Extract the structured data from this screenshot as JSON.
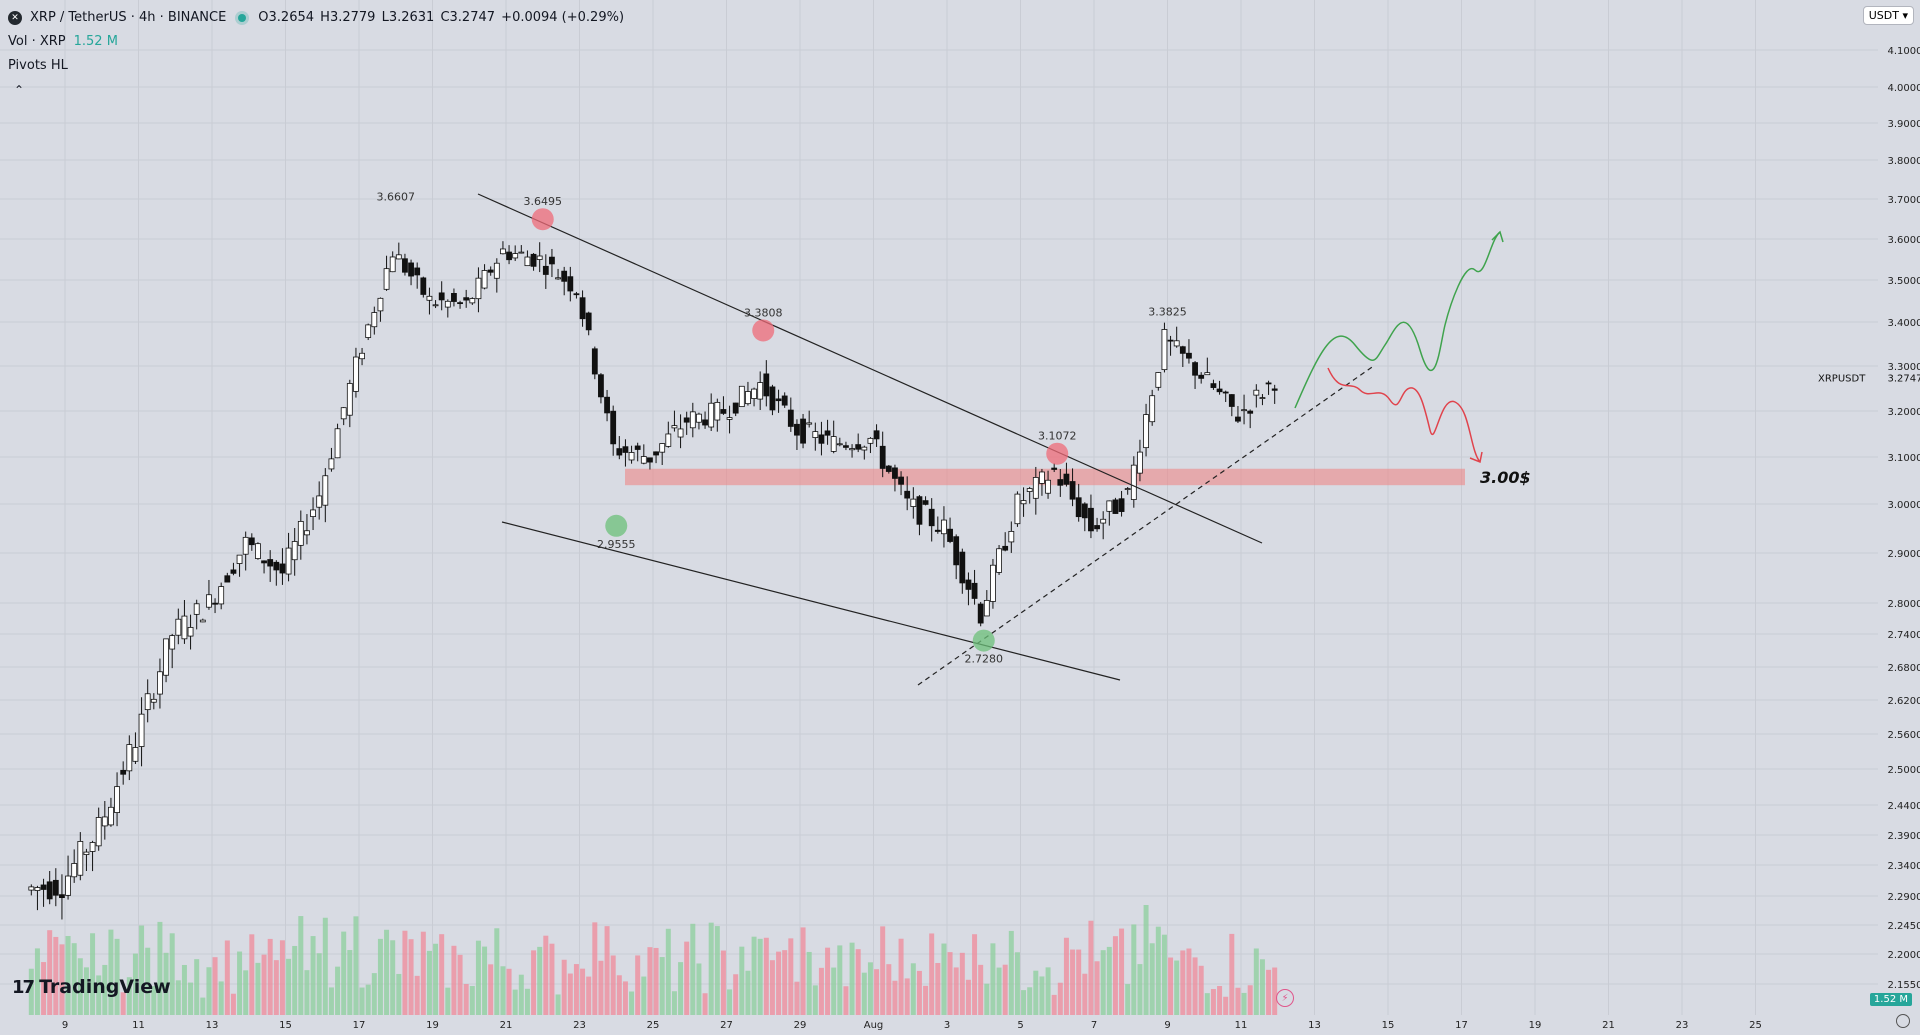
{
  "legend": {
    "symbol": "XRP / TetherUS · 4h · BINANCE",
    "open": "O3.2654",
    "high": "H3.2779",
    "low": "L3.2631",
    "close": "C3.2747",
    "change": "+0.0094 (+0.29%)",
    "volume_label": "Vol · XRP",
    "volume_value": "1.52 M",
    "indicator": "Pivots HL"
  },
  "currency_button": "USDT ▾",
  "brand": "TradingView",
  "volume_tag": "1.52 M",
  "colors": {
    "up": "#26a69a",
    "down": "#ef5350",
    "zone": "#f08080",
    "bg": "#d8dbe3"
  },
  "chart_data": {
    "type": "candlestick",
    "symbol_label": "XRPUSDT",
    "last_price": "3.2747",
    "price_axis_ticks": [
      "4.1000",
      "4.0000",
      "3.9000",
      "3.8000",
      "3.7000",
      "3.6000",
      "3.5000",
      "3.4000",
      "3.3000",
      "3.2000",
      "3.1000",
      "3.0000",
      "2.9000",
      "2.8000",
      "2.7400",
      "2.6800",
      "2.6200",
      "2.5600",
      "2.5000",
      "2.4400",
      "2.3900",
      "2.3400",
      "2.2900",
      "2.2450",
      "2.2000",
      "2.1550"
    ],
    "time_axis_ticks": [
      "9",
      "11",
      "13",
      "15",
      "17",
      "19",
      "21",
      "23",
      "25",
      "27",
      "29",
      "Aug",
      "3",
      "5",
      "7",
      "9",
      "11",
      "13",
      "15",
      "17",
      "19",
      "21",
      "23",
      "25"
    ],
    "price_path": [
      {
        "t": "Jul 8",
        "p": 2.3
      },
      {
        "t": "Jul 9",
        "p": 2.31
      },
      {
        "t": "Jul 10",
        "p": 2.4
      },
      {
        "t": "Jul 11",
        "p": 2.55
      },
      {
        "t": "Jul 12",
        "p": 2.74
      },
      {
        "t": "Jul 13",
        "p": 2.8
      },
      {
        "t": "Jul 14",
        "p": 2.92
      },
      {
        "t": "Jul 15",
        "p": 2.86
      },
      {
        "t": "Jul 16",
        "p": 3.02
      },
      {
        "t": "Jul 17",
        "p": 3.3
      },
      {
        "t": "Jul 18",
        "p": 3.57
      },
      {
        "t": "Jul 19",
        "p": 3.45
      },
      {
        "t": "Jul 20",
        "p": 3.44
      },
      {
        "t": "Jul 21",
        "p": 3.57
      },
      {
        "t": "Jul 22",
        "p": 3.55
      },
      {
        "t": "Jul 23",
        "p": 3.48
      },
      {
        "t": "Jul 24",
        "p": 3.12
      },
      {
        "t": "Jul 25",
        "p": 3.1
      },
      {
        "t": "Jul 26",
        "p": 3.18
      },
      {
        "t": "Jul 27",
        "p": 3.2
      },
      {
        "t": "Jul 28",
        "p": 3.26
      },
      {
        "t": "Jul 29",
        "p": 3.16
      },
      {
        "t": "Jul 30",
        "p": 3.13
      },
      {
        "t": "Jul 31",
        "p": 3.14
      },
      {
        "t": "Aug 1",
        "p": 3.0
      },
      {
        "t": "Aug 2",
        "p": 2.95
      },
      {
        "t": "Aug 3",
        "p": 2.78
      },
      {
        "t": "Aug 4",
        "p": 3.0
      },
      {
        "t": "Aug 5",
        "p": 3.07
      },
      {
        "t": "Aug 6",
        "p": 2.95
      },
      {
        "t": "Aug 7",
        "p": 3.02
      },
      {
        "t": "Aug 8",
        "p": 3.36
      },
      {
        "t": "Aug 9",
        "p": 3.28
      },
      {
        "t": "Aug 10",
        "p": 3.19
      },
      {
        "t": "Aug 11",
        "p": 3.27
      }
    ],
    "pivot_labels": [
      {
        "t": "Jul 18",
        "p": 3.6607,
        "text": "3.6607"
      },
      {
        "t": "Jul 22",
        "p": 3.6495,
        "text": "3.6495"
      },
      {
        "t": "Jul 28",
        "p": 3.3808,
        "text": "3.3808"
      },
      {
        "t": "Jul 24",
        "p": 2.9555,
        "text": "2.9555"
      },
      {
        "t": "Aug 3",
        "p": 2.728,
        "text": "2.7280"
      },
      {
        "t": "Aug 5",
        "p": 3.1072,
        "text": "3.1072"
      },
      {
        "t": "Aug 8",
        "p": 3.3825,
        "text": "3.3825"
      }
    ],
    "support_zone": {
      "from": 3.04,
      "to": 3.075,
      "label": "3.00$"
    },
    "volume_max_label": "1.52 M",
    "grid": true
  }
}
